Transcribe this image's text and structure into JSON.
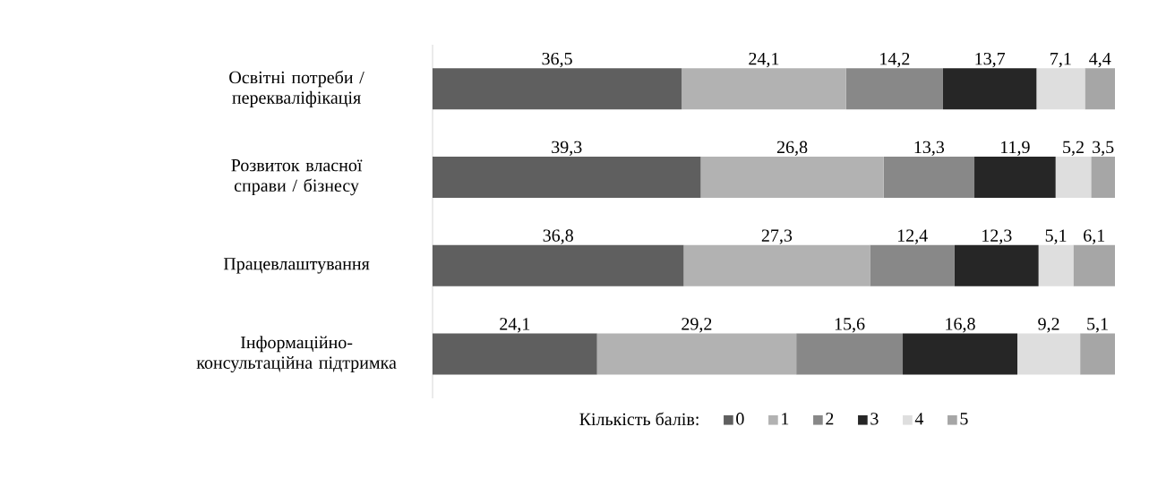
{
  "chart_data": {
    "type": "bar",
    "orientation": "horizontal",
    "stacked": true,
    "tick_labels": "y",
    "legend": "bottom",
    "legend_title": "Кількість балів:",
    "categories": [
      "Освітні потреби / перекваліфікація",
      "Розвиток власної справи / бізнесу",
      "Працевлаштування",
      "Інформаційно-консультаційна підтримка"
    ],
    "series": [
      {
        "name": "0",
        "color": "#5f5f5f",
        "values": [
          36.5,
          39.3,
          36.8,
          24.1
        ],
        "value_labels": [
          "36,5",
          "39,3",
          "36,8",
          "24,1"
        ]
      },
      {
        "name": "1",
        "color": "#b2b2b2",
        "values": [
          24.1,
          26.8,
          27.3,
          29.2
        ],
        "value_labels": [
          "24,1",
          "26,8",
          "27,3",
          "29,2"
        ]
      },
      {
        "name": "2",
        "color": "#888888",
        "values": [
          14.2,
          13.3,
          12.4,
          15.6
        ],
        "value_labels": [
          "14,2",
          "13,3",
          "12,4",
          "15,6"
        ]
      },
      {
        "name": "3",
        "color": "#262626",
        "values": [
          13.7,
          11.9,
          12.3,
          16.8
        ],
        "value_labels": [
          "13,7",
          "11,9",
          "12,3",
          "16,8"
        ]
      },
      {
        "name": "4",
        "color": "#dedede",
        "values": [
          7.1,
          5.2,
          5.1,
          9.2
        ],
        "value_labels": [
          "7,1",
          "5,2",
          "5,1",
          "9,2"
        ]
      },
      {
        "name": "5",
        "color": "#a6a6a6",
        "values": [
          4.4,
          3.5,
          6.1,
          5.1
        ],
        "value_labels": [
          "4,4",
          "3,5",
          "6,1",
          "5,1"
        ]
      }
    ]
  }
}
